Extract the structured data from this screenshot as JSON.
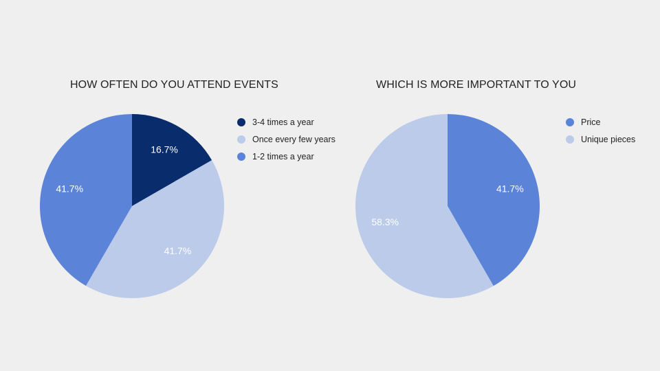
{
  "chart_data": [
    {
      "type": "pie",
      "title": "HOW OFTEN DO YOU ATTEND EVENTS",
      "legend_position": "right",
      "slices": [
        {
          "label": "3-4 times a year",
          "value": 16.7,
          "display": "16.7%",
          "color": "#082c6c"
        },
        {
          "label": "Once every few years",
          "value": 41.7,
          "display": "41.7%",
          "color": "#bccbe9"
        },
        {
          "label": "1-2 times a year",
          "value": 41.7,
          "display": "41.7%",
          "color": "#5b84d8"
        }
      ]
    },
    {
      "type": "pie",
      "title": "WHICH IS MORE IMPORTANT TO YOU",
      "legend_position": "right",
      "slices": [
        {
          "label": "Price",
          "value": 41.7,
          "display": "41.7%",
          "color": "#5b84d8"
        },
        {
          "label": "Unique pieces",
          "value": 58.3,
          "display": "58.3%",
          "color": "#bccbe9"
        }
      ]
    }
  ]
}
